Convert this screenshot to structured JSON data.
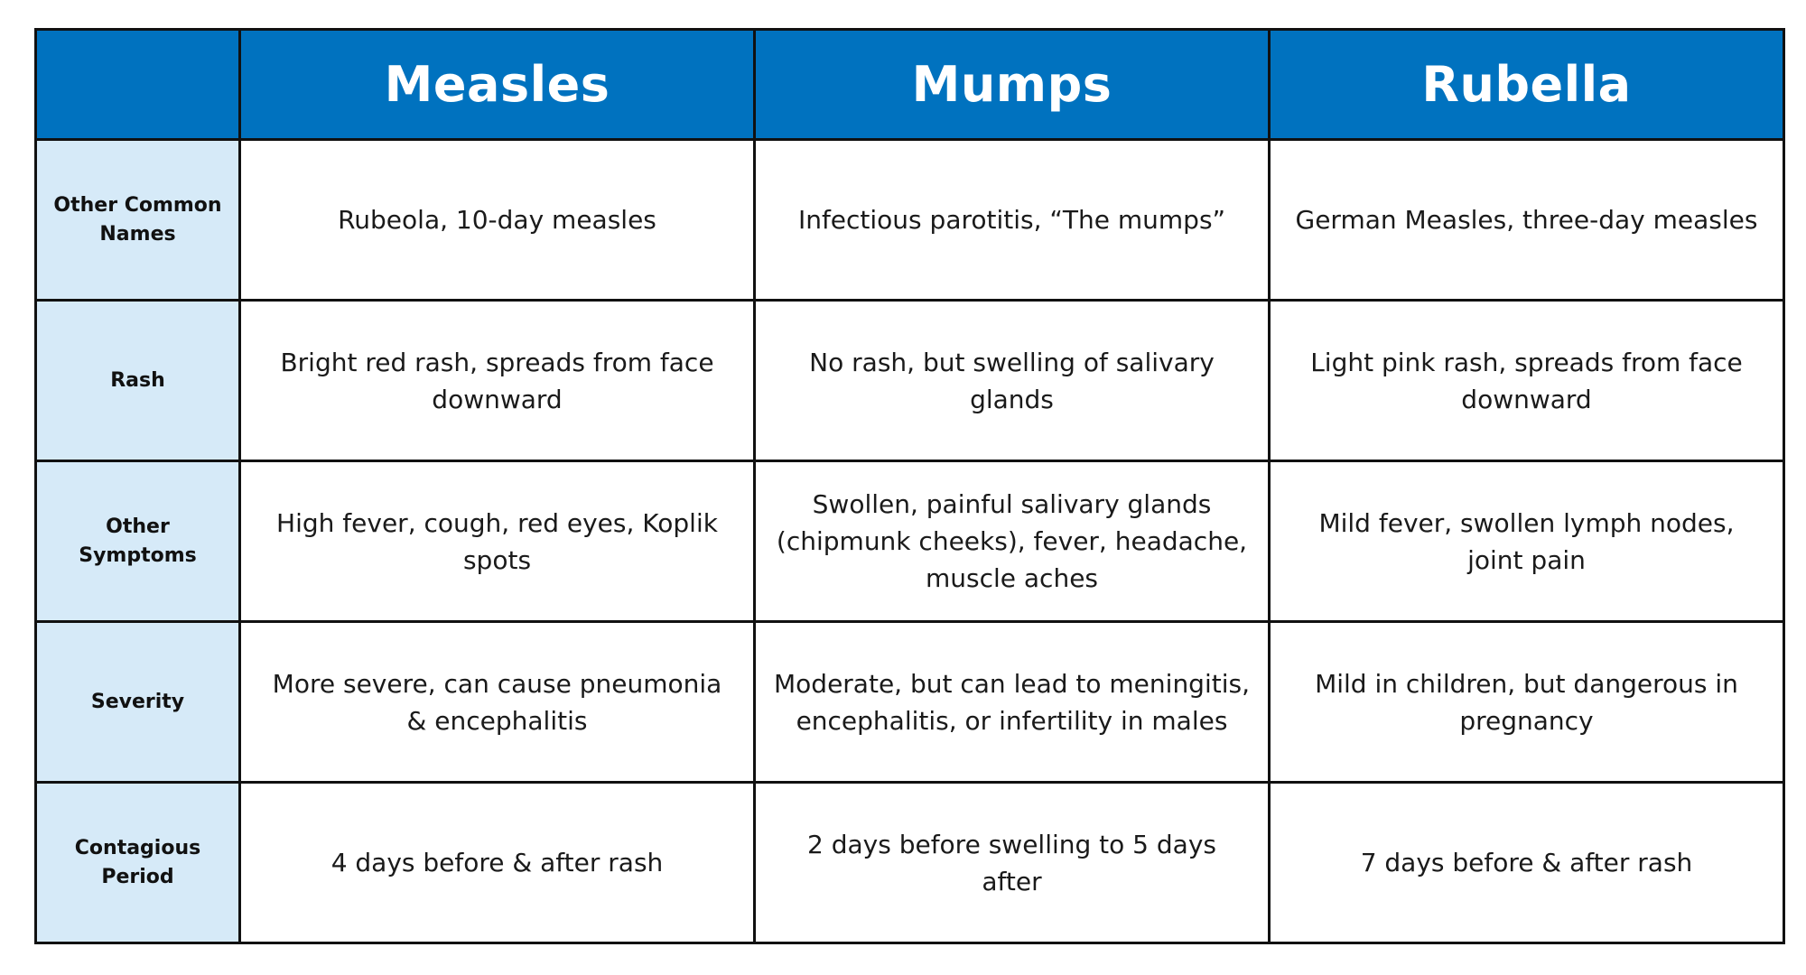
{
  "table": {
    "columns": [
      "Measles",
      "Mumps",
      "Rubella"
    ],
    "rows": [
      {
        "label": "Other Common Names",
        "cells": [
          "Rubeola, 10-day measles",
          "Infectious parotitis, “The mumps”",
          "German Measles, three-day measles"
        ]
      },
      {
        "label": "Rash",
        "cells": [
          "Bright red rash, spreads from face downward",
          "No rash, but swelling of salivary glands",
          "Light pink rash, spreads from face downward"
        ]
      },
      {
        "label": "Other Symptoms",
        "cells": [
          "High fever, cough, red eyes, Koplik spots",
          "Swollen, painful salivary glands (chipmunk cheeks), fever, headache, muscle aches",
          "Mild fever, swollen lymph nodes, joint pain"
        ]
      },
      {
        "label": "Severity",
        "cells": [
          "More severe, can cause pneumonia & encephalitis",
          "Moderate, but can lead to meningitis, encephalitis, or infertility in males",
          "Mild in children, but dangerous in pregnancy"
        ]
      },
      {
        "label": "Contagious Period",
        "cells": [
          "4 days before & after rash",
          "2 days before swelling to 5 days after",
          "7 days before & after rash"
        ]
      }
    ]
  },
  "colors": {
    "header_background": "#0072bf",
    "header_text": "#ffffff",
    "row_label_background": "#d6eaf8",
    "border": "#111111"
  }
}
